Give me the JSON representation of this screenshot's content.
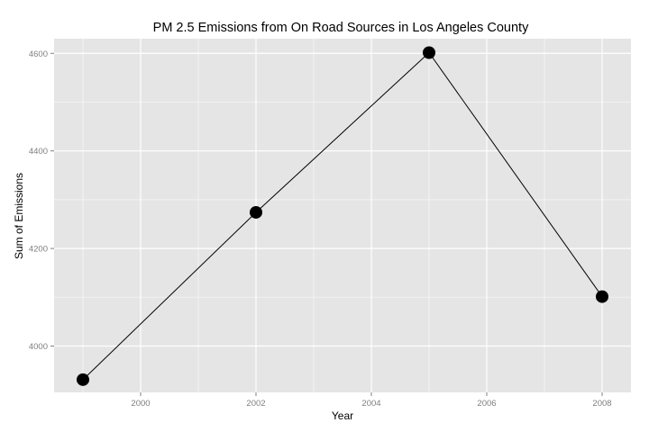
{
  "chart_data": {
    "type": "line",
    "title": "PM 2.5 Emissions from On Road Sources in Los Angeles County",
    "xlabel": "Year",
    "ylabel": "Sum of Emissions",
    "x": [
      1999,
      2002,
      2005,
      2008
    ],
    "series": [
      {
        "values": [
          3931.1,
          4274.0,
          4601.4,
          4101.3
        ]
      }
    ],
    "xlim": [
      1998.5,
      2008.5
    ],
    "ylim": [
      3905,
      4630
    ],
    "x_ticks": [
      2000,
      2002,
      2004,
      2006,
      2008
    ],
    "x_tick_labels": [
      "2000",
      "2002",
      "2004",
      "2006",
      "2008"
    ],
    "y_ticks": [
      4000,
      4200,
      4400,
      4600
    ],
    "y_tick_labels": [
      "4000",
      "4200",
      "4400",
      "4600"
    ],
    "grid": true,
    "legend": "none",
    "colors": {
      "panel_background": "#e5e5e5",
      "grid_major": "#ffffff",
      "grid_minor": "#f2f2f2",
      "line": "#000000",
      "point": "#000000",
      "tick_label": "#7f7f7f"
    }
  }
}
